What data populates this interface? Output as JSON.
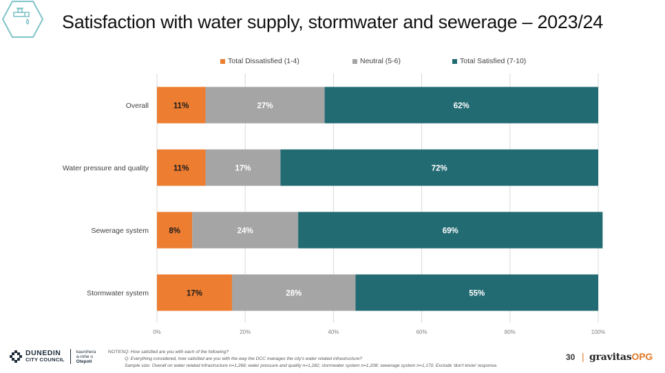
{
  "header": {
    "title": "Satisfaction with water supply, stormwater and sewerage – 2023/24",
    "icon": "water-tap-icon"
  },
  "colors": {
    "dissatisfied": "#ED7D31",
    "neutral": "#A5A5A5",
    "satisfied": "#236B73",
    "grid": "#D9D9D9",
    "brand_accent": "#E07A2A"
  },
  "chart_data": {
    "type": "bar",
    "orientation": "horizontal-stacked-100",
    "categories": [
      "Overall",
      "Water pressure and quality",
      "Sewerage system",
      "Stormwater system"
    ],
    "series": [
      {
        "name": "Total Dissatisfied (1-4)",
        "values": [
          11,
          11,
          8,
          17
        ],
        "labels": [
          "11%",
          "11%",
          "8%",
          "17%"
        ]
      },
      {
        "name": "Neutral (5-6)",
        "values": [
          27,
          17,
          24,
          28
        ],
        "labels": [
          "27%",
          "17%",
          "24%",
          "28%"
        ]
      },
      {
        "name": "Total Satisfied (7-10)",
        "values": [
          62,
          72,
          69,
          55
        ],
        "labels": [
          "62%",
          "72%",
          "69%",
          "55%"
        ]
      }
    ],
    "xlim": [
      0,
      100
    ],
    "x_ticks": [
      "0%",
      "20%",
      "40%",
      "60%",
      "80%",
      "100%"
    ],
    "grid": true,
    "legend_position": "top"
  },
  "footer": {
    "council_name": "DUNEDIN",
    "council_sub": "CITY COUNCIL",
    "maori_1": "kaunihera",
    "maori_2": "a-rohe o",
    "maori_3": "Otepoti",
    "notes_label": "NOTES",
    "notes": [
      "Q: How satisfied are you with each of the following?",
      "Q: Everything considered, how satisfied are you with the way the DCC manages the city's water related infrastructure?",
      "Sample size: Overall on water related infrastructure n=1,266; water pressure and quality n=1,282; stormwater system n=1,208; sewerage system n=1,170. Exclude 'don't know' response."
    ],
    "page_number": "30",
    "separator": "|",
    "brand_main": "gravitas",
    "brand_accent": "OPG"
  }
}
